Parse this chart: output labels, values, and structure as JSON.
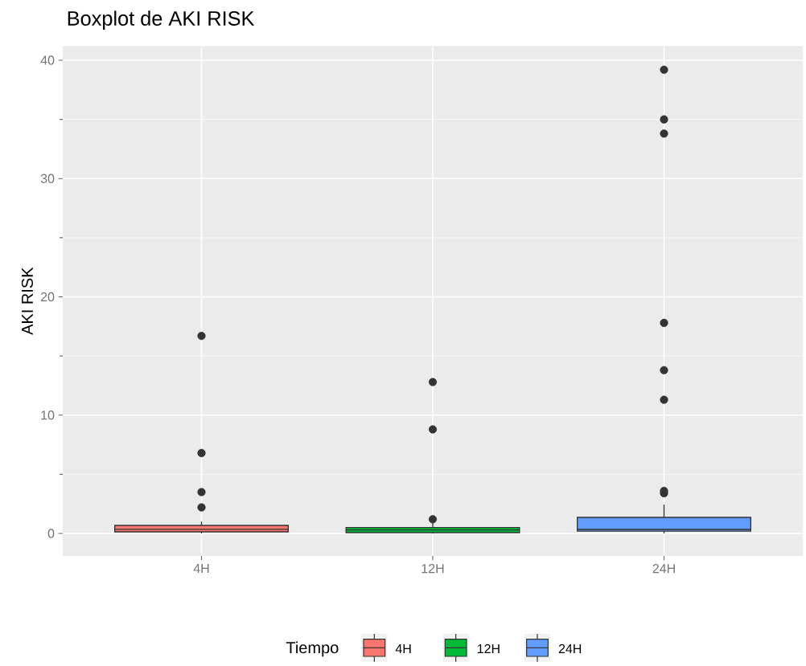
{
  "chart_data": {
    "type": "box",
    "title": "Boxplot de AKI RISK",
    "ylabel": "AKI RISK",
    "legend_title": "Tiempo",
    "categories": [
      "4H",
      "12H",
      "24H"
    ],
    "series": [
      {
        "name": "4H",
        "color": "#f8766d",
        "boxes": [
          {
            "low": 0,
            "q1": 0.14,
            "median": 0.35,
            "q3": 0.68,
            "high": 1.0,
            "outliers": [
              2.2,
              3.5,
              6.8,
              16.7
            ]
          },
          null,
          null
        ]
      },
      {
        "name": "12H",
        "color": "#00ba38",
        "boxes": [
          null,
          {
            "low": 0,
            "q1": 0.07,
            "median": 0.3,
            "q3": 0.5,
            "high": 0.9,
            "outliers": [
              1.2,
              8.8,
              12.8
            ]
          },
          null
        ]
      },
      {
        "name": "24H",
        "color": "#619cff",
        "boxes": [
          null,
          null,
          {
            "low": 0,
            "q1": 0.2,
            "median": 0.34,
            "q3": 1.36,
            "high": 2.44,
            "outliers": [
              3.4,
              3.6,
              11.3,
              13.8,
              17.8,
              33.8,
              35.0,
              39.2
            ]
          }
        ]
      }
    ],
    "ylim": [
      -1.9,
      41.2
    ],
    "yticks": [
      0,
      10,
      20,
      30,
      40
    ],
    "grid": true,
    "legend": "bottom",
    "marker": "circle"
  }
}
